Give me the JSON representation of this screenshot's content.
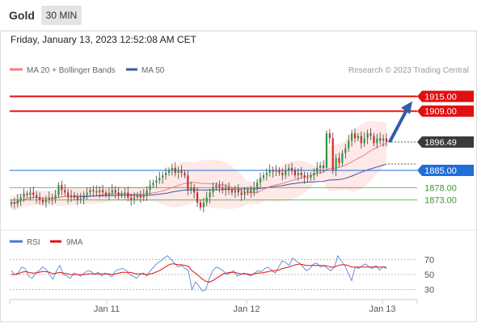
{
  "header": {
    "asset": "Gold",
    "timeframe": "30 MIN",
    "timestamp": "Friday, January 13, 2023 12:52:08 AM CET"
  },
  "legend": {
    "ma20": "MA 20 + Bollinger Bands",
    "ma50": "MA 50",
    "credit": "Research © 2023 Trading Central",
    "rsi": "RSI",
    "ma9": "9MA"
  },
  "colors": {
    "resistance": "#e01010",
    "support": "#3a9a2a",
    "pivot": "#1f6fd8",
    "last": "#333333",
    "ma20": "#f08080",
    "ma50": "#3a5a9a",
    "band": "#fde0e0",
    "candle_up": "#2a9a3a",
    "candle_down": "#d02828",
    "rsi": "#4a78d0",
    "rsi_ma": "#e01010"
  },
  "chart_data": [
    {
      "type": "candlestick",
      "y_range": [
        1865,
        1922
      ],
      "x_ticks": [
        "Jan 11",
        "Jan 12",
        "Jan 13"
      ],
      "levels": [
        {
          "label": "1915.00",
          "value": 1915,
          "kind": "resistance"
        },
        {
          "label": "1909.00",
          "value": 1909,
          "kind": "resistance"
        },
        {
          "label": "1896.49",
          "value": 1896.49,
          "kind": "last"
        },
        {
          "label": "1885.00",
          "value": 1885,
          "kind": "pivot"
        },
        {
          "label": "1878.00",
          "value": 1878,
          "kind": "support"
        },
        {
          "label": "1873.00",
          "value": 1873,
          "kind": "support"
        }
      ],
      "close": [
        1872,
        1871.5,
        1873,
        1874,
        1875.5,
        1875,
        1876,
        1875,
        1874,
        1873,
        1872,
        1873,
        1874,
        1873.5,
        1875,
        1879,
        1877,
        1876,
        1874,
        1875,
        1874,
        1873,
        1873.5,
        1875,
        1876,
        1877,
        1876.5,
        1876,
        1877,
        1876,
        1875,
        1876,
        1877,
        1876,
        1875,
        1875.5,
        1876,
        1874,
        1873,
        1874,
        1875,
        1874,
        1875,
        1877,
        1879,
        1880,
        1881,
        1882,
        1883,
        1884,
        1885,
        1886,
        1884,
        1885,
        1884,
        1883,
        1877,
        1878,
        1876,
        1872,
        1870,
        1872,
        1874,
        1876,
        1878,
        1879,
        1878,
        1877,
        1878,
        1877,
        1876,
        1877,
        1876,
        1875,
        1876,
        1877,
        1876,
        1878,
        1880,
        1882,
        1883,
        1884,
        1885,
        1884.5,
        1885,
        1884,
        1883,
        1885,
        1886,
        1885,
        1883,
        1884,
        1883,
        1882,
        1882,
        1883,
        1884,
        1886,
        1887,
        1886,
        1900,
        1898,
        1885,
        1890,
        1888,
        1892,
        1894,
        1897,
        1900,
        1898,
        1899,
        1896,
        1898,
        1900,
        1899,
        1896,
        1898,
        1897,
        1898,
        1896.5
      ],
      "rsi": {
        "y_ticks": [
          70,
          50,
          30
        ],
        "values": [
          55,
          50,
          52,
          60,
          58,
          48,
          45,
          52,
          55,
          60,
          57,
          50,
          44,
          55,
          62,
          50,
          48,
          45,
          52,
          50,
          48,
          52,
          55,
          54,
          50,
          53,
          48,
          52,
          50,
          47,
          55,
          57,
          58,
          56,
          50,
          48,
          45,
          50,
          52,
          48,
          55,
          60,
          65,
          68,
          72,
          75,
          70,
          65,
          60,
          62,
          58,
          55,
          30,
          40,
          35,
          28,
          30,
          45,
          55,
          60,
          58,
          55,
          50,
          52,
          55,
          48,
          50,
          52,
          50,
          48,
          52,
          55,
          54,
          58,
          60,
          55,
          52,
          60,
          68,
          66,
          62,
          72,
          68,
          65,
          60,
          55,
          58,
          64,
          65,
          60,
          62,
          58,
          55,
          60,
          75,
          68,
          62,
          52,
          42,
          60,
          58,
          62,
          64,
          60,
          58,
          62,
          56,
          60,
          58
        ],
        "ma": [
          50,
          50,
          51,
          53,
          54,
          53,
          52,
          52,
          53,
          54,
          54,
          53,
          51,
          52,
          53,
          52,
          51,
          50,
          50,
          50,
          50,
          50,
          51,
          51,
          51,
          51,
          51,
          51,
          51,
          50,
          51,
          52,
          53,
          53,
          53,
          52,
          51,
          51,
          51,
          50,
          51,
          52,
          54,
          56,
          59,
          62,
          64,
          64,
          63,
          63,
          62,
          61,
          55,
          52,
          48,
          44,
          41,
          40,
          42,
          45,
          48,
          51,
          52,
          53,
          53,
          52,
          51,
          51,
          51,
          50,
          51,
          52,
          52,
          53,
          54,
          55,
          55,
          56,
          58,
          59,
          60,
          62,
          63,
          64,
          63,
          62,
          62,
          62,
          62,
          62,
          62,
          61,
          60,
          60,
          62,
          63,
          63,
          62,
          60,
          60,
          60,
          60,
          60,
          60,
          60,
          60,
          60,
          60,
          60
        ]
      }
    }
  ]
}
